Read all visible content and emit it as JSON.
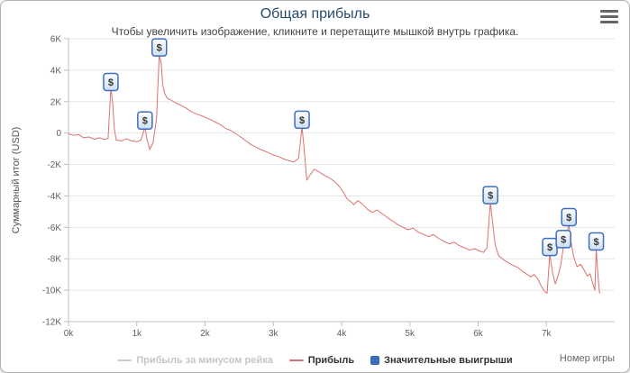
{
  "chart_data": {
    "type": "line",
    "title": "Общая прибыль",
    "subtitle": "Чтобы увеличить изображение, кликните и перетащите мышкой внутрь графика.",
    "xlabel": "Номер игры",
    "ylabel": "Суммарный итог (USD)",
    "xlim": [
      0,
      8
    ],
    "ylim": [
      -12,
      6
    ],
    "grid": "horizontal",
    "legend_position": "bottom-center",
    "x_ticks": [
      {
        "value": 0,
        "label": "0k"
      },
      {
        "value": 1,
        "label": "1k"
      },
      {
        "value": 2,
        "label": "2k"
      },
      {
        "value": 3,
        "label": "3k"
      },
      {
        "value": 4,
        "label": "4k"
      },
      {
        "value": 5,
        "label": "5k"
      },
      {
        "value": 6,
        "label": "6k"
      },
      {
        "value": 7,
        "label": "7k"
      }
    ],
    "y_ticks": [
      {
        "value": 6,
        "label": "6K"
      },
      {
        "value": 4,
        "label": "4K"
      },
      {
        "value": 2,
        "label": "2K"
      },
      {
        "value": 0,
        "label": "0"
      },
      {
        "value": -2,
        "label": "-2K"
      },
      {
        "value": -4,
        "label": "-4K"
      },
      {
        "value": -6,
        "label": "-6K"
      },
      {
        "value": -8,
        "label": "-8K"
      },
      {
        "value": -10,
        "label": "-10K"
      },
      {
        "value": -12,
        "label": "-12K"
      }
    ],
    "colors": {
      "grid": "#e6e6e6",
      "axis": "#c0c0c0",
      "tick_label": "#606060",
      "title": "#274b6d",
      "flag_fill_top": "#ffffff",
      "flag_fill_bottom": "#cddff2"
    },
    "series": [
      {
        "name": "Прибыль за минусом рейка",
        "type": "line",
        "color": "#cccccc",
        "visible": false,
        "points": []
      },
      {
        "name": "Прибыль",
        "type": "line",
        "color": "#dd7070",
        "visible": true,
        "points": [
          [
            0,
            -0.05
          ],
          [
            0.08,
            -0.15
          ],
          [
            0.15,
            -0.1
          ],
          [
            0.22,
            -0.3
          ],
          [
            0.3,
            -0.25
          ],
          [
            0.38,
            -0.4
          ],
          [
            0.45,
            -0.3
          ],
          [
            0.52,
            -0.4
          ],
          [
            0.58,
            -0.35
          ],
          [
            0.62,
            2.9
          ],
          [
            0.65,
            1.8
          ],
          [
            0.67,
            0.3
          ],
          [
            0.7,
            -0.45
          ],
          [
            0.78,
            -0.5
          ],
          [
            0.85,
            -0.35
          ],
          [
            0.92,
            -0.5
          ],
          [
            1.0,
            -0.55
          ],
          [
            1.06,
            -0.45
          ],
          [
            1.12,
            0.35
          ],
          [
            1.15,
            -0.4
          ],
          [
            1.19,
            -1.05
          ],
          [
            1.24,
            -0.6
          ],
          [
            1.29,
            0.9
          ],
          [
            1.33,
            5.0
          ],
          [
            1.36,
            4.4
          ],
          [
            1.38,
            3.1
          ],
          [
            1.41,
            2.5
          ],
          [
            1.45,
            2.2
          ],
          [
            1.5,
            2.1
          ],
          [
            1.58,
            1.9
          ],
          [
            1.65,
            1.75
          ],
          [
            1.72,
            1.6
          ],
          [
            1.8,
            1.35
          ],
          [
            1.88,
            1.2
          ],
          [
            1.95,
            1.1
          ],
          [
            2.0,
            1.0
          ],
          [
            2.08,
            0.85
          ],
          [
            2.15,
            0.7
          ],
          [
            2.22,
            0.55
          ],
          [
            2.3,
            0.3
          ],
          [
            2.38,
            0.15
          ],
          [
            2.45,
            -0.05
          ],
          [
            2.52,
            -0.25
          ],
          [
            2.6,
            -0.5
          ],
          [
            2.68,
            -0.75
          ],
          [
            2.75,
            -0.9
          ],
          [
            2.82,
            -1.05
          ],
          [
            2.9,
            -1.2
          ],
          [
            3.0,
            -1.4
          ],
          [
            3.08,
            -1.5
          ],
          [
            3.15,
            -1.65
          ],
          [
            3.22,
            -1.75
          ],
          [
            3.3,
            -1.85
          ],
          [
            3.37,
            -1.6
          ],
          [
            3.42,
            0.4
          ],
          [
            3.45,
            -0.9
          ],
          [
            3.49,
            -3.0
          ],
          [
            3.54,
            -2.65
          ],
          [
            3.6,
            -2.3
          ],
          [
            3.68,
            -2.5
          ],
          [
            3.75,
            -2.7
          ],
          [
            3.82,
            -2.85
          ],
          [
            3.9,
            -3.1
          ],
          [
            3.97,
            -3.4
          ],
          [
            4.03,
            -3.8
          ],
          [
            4.08,
            -4.2
          ],
          [
            4.13,
            -4.35
          ],
          [
            4.18,
            -4.55
          ],
          [
            4.24,
            -4.3
          ],
          [
            4.3,
            -4.5
          ],
          [
            4.38,
            -4.85
          ],
          [
            4.45,
            -5.05
          ],
          [
            4.52,
            -4.9
          ],
          [
            4.6,
            -5.15
          ],
          [
            4.68,
            -5.4
          ],
          [
            4.75,
            -5.6
          ],
          [
            4.83,
            -5.85
          ],
          [
            4.9,
            -6.0
          ],
          [
            4.97,
            -6.15
          ],
          [
            5.05,
            -6.05
          ],
          [
            5.12,
            -6.3
          ],
          [
            5.2,
            -6.45
          ],
          [
            5.28,
            -6.6
          ],
          [
            5.34,
            -6.45
          ],
          [
            5.42,
            -6.7
          ],
          [
            5.5,
            -6.9
          ],
          [
            5.58,
            -7.05
          ],
          [
            5.65,
            -6.95
          ],
          [
            5.72,
            -7.15
          ],
          [
            5.8,
            -7.3
          ],
          [
            5.88,
            -7.45
          ],
          [
            5.95,
            -7.35
          ],
          [
            6.02,
            -7.5
          ],
          [
            6.08,
            -7.6
          ],
          [
            6.13,
            -7.3
          ],
          [
            6.18,
            -4.4
          ],
          [
            6.21,
            -5.6
          ],
          [
            6.25,
            -7.1
          ],
          [
            6.3,
            -7.8
          ],
          [
            6.37,
            -8.05
          ],
          [
            6.44,
            -8.25
          ],
          [
            6.5,
            -8.4
          ],
          [
            6.58,
            -8.55
          ],
          [
            6.65,
            -8.8
          ],
          [
            6.72,
            -9.0
          ],
          [
            6.77,
            -9.15
          ],
          [
            6.82,
            -9.0
          ],
          [
            6.87,
            -9.25
          ],
          [
            6.92,
            -9.7
          ],
          [
            6.97,
            -10.05
          ],
          [
            7.01,
            -10.2
          ],
          [
            7.05,
            -7.7
          ],
          [
            7.09,
            -8.9
          ],
          [
            7.13,
            -9.6
          ],
          [
            7.17,
            -9.1
          ],
          [
            7.21,
            -8.4
          ],
          [
            7.25,
            -7.2
          ],
          [
            7.29,
            -6.6
          ],
          [
            7.33,
            -5.8
          ],
          [
            7.36,
            -6.9
          ],
          [
            7.4,
            -7.9
          ],
          [
            7.45,
            -8.5
          ],
          [
            7.5,
            -8.35
          ],
          [
            7.55,
            -8.7
          ],
          [
            7.6,
            -9.1
          ],
          [
            7.64,
            -8.95
          ],
          [
            7.68,
            -9.6
          ],
          [
            7.71,
            -10.0
          ],
          [
            7.73,
            -7.4
          ],
          [
            7.76,
            -9.3
          ],
          [
            7.78,
            -10.2
          ]
        ]
      },
      {
        "name": "Значительные выигрыши",
        "type": "flags",
        "color": "#3d6dbf",
        "symbol": "$",
        "points": [
          {
            "x": 0.62,
            "y": 3.25,
            "anchor": 2.9
          },
          {
            "x": 1.12,
            "y": 0.8,
            "anchor": 0.35
          },
          {
            "x": 1.33,
            "y": 5.45,
            "anchor": 5.0
          },
          {
            "x": 3.42,
            "y": 0.85,
            "anchor": 0.4
          },
          {
            "x": 6.18,
            "y": -3.95,
            "anchor": -4.4
          },
          {
            "x": 7.05,
            "y": -7.25,
            "anchor": -7.7
          },
          {
            "x": 7.25,
            "y": -6.75,
            "anchor": -7.2
          },
          {
            "x": 7.33,
            "y": -5.35,
            "anchor": -5.8
          },
          {
            "x": 7.73,
            "y": -6.9,
            "anchor": -7.4
          }
        ]
      }
    ]
  }
}
